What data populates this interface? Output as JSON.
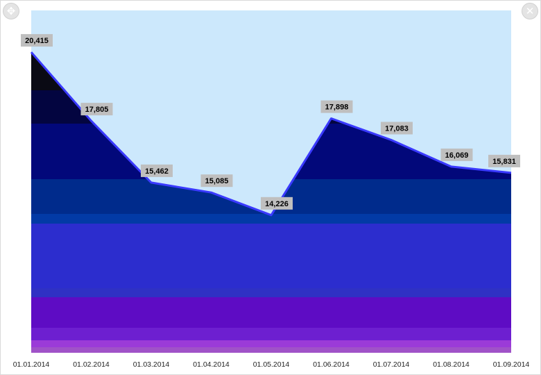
{
  "window": {
    "move_icon": "move-arrows-icon",
    "close_icon": "close-x-icon",
    "move_glyph": "✥",
    "close_glyph": "✕"
  },
  "colors": {
    "plot_background": "#cce8fc",
    "label_background": "#bfbfbf",
    "line": "#3a3aff",
    "gradient_bands": [
      "#0a0a14",
      "#030540",
      "#02087a",
      "#002b8c",
      "#023aa6",
      "#2c2dce",
      "#2f31c4",
      "#5e0cc4",
      "#6d1fd0",
      "#9b3bd8",
      "#a052c8"
    ]
  },
  "chart_data": {
    "type": "area",
    "categories": [
      "01.01.2014",
      "01.02.2014",
      "01.03.2014",
      "01.04.2014",
      "01.05.2014",
      "01.06.2014",
      "01.07.2014",
      "01.08.2014",
      "01.09.2014"
    ],
    "values": [
      20415,
      17805,
      15462,
      15085,
      14226,
      17898,
      17083,
      16069,
      15831
    ],
    "data_labels": [
      "20,415",
      "17,805",
      "15,462",
      "15,085",
      "14,226",
      "17,898",
      "17,083",
      "16,069",
      "15,831"
    ],
    "title": "",
    "xlabel": "",
    "ylabel": "",
    "ylim": [
      9000,
      22000
    ],
    "grid": false,
    "legend": "none"
  }
}
